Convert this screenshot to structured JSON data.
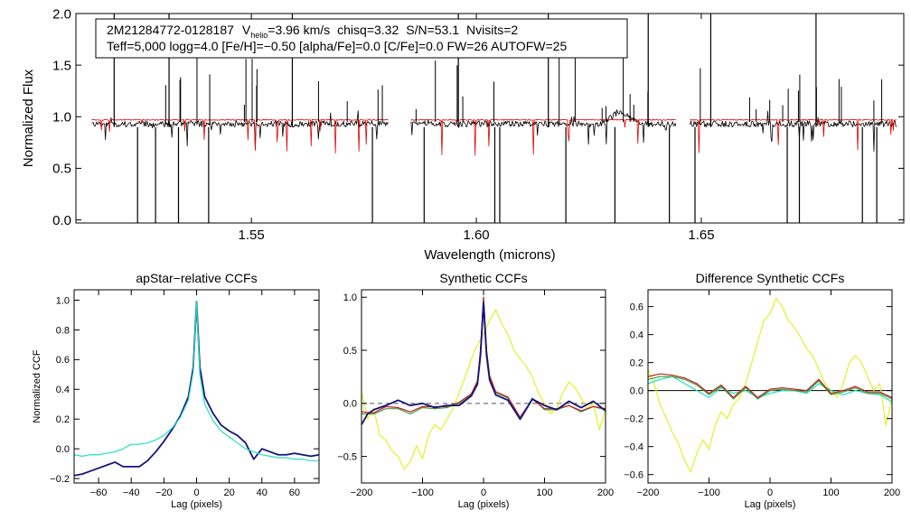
{
  "colors": {
    "observed": "#000000",
    "model": "#e00000",
    "ccf_dark": "#14147a",
    "ccf_teal": "#22e0c0",
    "ccf_yellow": "#e2f22a",
    "ccf_red": "#c02020",
    "ccf_green": "#48a048",
    "zero_line": "#555555"
  },
  "info": {
    "star_id": "2M21284772-0128187",
    "vhelio_prefix": "V",
    "vhelio_sub": "helio",
    "vhelio_value": "=3.96 km/s",
    "chisq": "chisq=3.32",
    "snr": "S/N=53.1",
    "nvisits": "Nvisits=2",
    "line2": "Teff=5,000 logg=4.0 [Fe/H]=−0.50 [alpha/Fe]=0.0 [C/Fe]=0.0 FW=26 AUTOFW=25"
  },
  "chart_data": [
    {
      "type": "line",
      "name": "spectrum",
      "title": "",
      "xlabel": "Wavelength (microns)",
      "ylabel": "Normalized Flux",
      "xlim": [
        1.511,
        1.695
      ],
      "ylim": [
        -0.03,
        2.0
      ],
      "xticks": [
        1.55,
        1.6,
        1.65
      ],
      "xtick_labels": [
        "1.55",
        "1.60",
        "1.65"
      ],
      "yticks": [
        0.0,
        0.5,
        1.0,
        1.5,
        2.0
      ],
      "ytick_labels": [
        "0.0",
        "0.5",
        "1.0",
        "1.5",
        "2.0"
      ],
      "chips": [
        [
          1.5145,
          1.5805
        ],
        [
          1.5855,
          1.6445
        ],
        [
          1.6475,
          1.6935
        ]
      ],
      "series": [
        {
          "name": "observed",
          "color_key": "observed",
          "continuum": 0.93,
          "noise": 0.03
        },
        {
          "name": "model",
          "color_key": "model",
          "continuum": 0.97,
          "noise": 0.005
        }
      ],
      "strong_lines_um": [
        1.5195,
        1.5247,
        1.5287,
        1.5317,
        1.5338,
        1.5405,
        1.5591,
        1.5769,
        1.5884,
        1.596,
        1.6041,
        1.6052,
        1.616,
        1.6199,
        1.6308,
        1.6382,
        1.6429,
        1.6486,
        1.6521,
        1.6691,
        1.6718,
        1.6755,
        1.6858,
        1.689
      ]
    },
    {
      "type": "line",
      "name": "apstar_ccf",
      "title": "apStar−relative CCFs",
      "xlabel": "Lag (pixels)",
      "ylabel": "Normalized CCF",
      "xlim": [
        -75,
        75
      ],
      "ylim": [
        -0.23,
        1.07
      ],
      "xticks": [
        -60,
        -40,
        -20,
        0,
        20,
        40,
        60
      ],
      "xtick_labels": [
        "−60",
        "−40",
        "−20",
        "0",
        "20",
        "40",
        "60"
      ],
      "yticks": [
        -0.2,
        0.0,
        0.2,
        0.4,
        0.6,
        0.8,
        1.0
      ],
      "ytick_labels": [
        "−0.2",
        "0.0",
        "0.2",
        "0.4",
        "0.6",
        "0.8",
        "1.0"
      ],
      "series": [
        {
          "name": "ccf-dark",
          "color_key": "ccf_dark",
          "x": [
            -75,
            -70,
            -65,
            -60,
            -55,
            -50,
            -45,
            -40,
            -35,
            -30,
            -25,
            -20,
            -15,
            -10,
            -5,
            -2,
            0,
            2,
            5,
            10,
            15,
            20,
            25,
            30,
            35,
            40,
            45,
            50,
            55,
            60,
            65,
            70,
            75
          ],
          "y": [
            -0.18,
            -0.17,
            -0.15,
            -0.13,
            -0.11,
            -0.09,
            -0.12,
            -0.12,
            -0.12,
            -0.08,
            -0.02,
            0.05,
            0.13,
            0.22,
            0.35,
            0.55,
            0.99,
            0.55,
            0.35,
            0.24,
            0.16,
            0.12,
            0.09,
            0.04,
            -0.07,
            0.0,
            -0.02,
            -0.04,
            -0.04,
            -0.03,
            -0.04,
            -0.05,
            -0.04
          ]
        },
        {
          "name": "ccf-teal",
          "color_key": "ccf_teal",
          "x": [
            -75,
            -70,
            -65,
            -60,
            -55,
            -50,
            -45,
            -40,
            -35,
            -30,
            -25,
            -20,
            -15,
            -10,
            -5,
            -2,
            0,
            2,
            5,
            10,
            15,
            20,
            25,
            30,
            35,
            40,
            45,
            50,
            55,
            60,
            65,
            70,
            75
          ],
          "y": [
            -0.04,
            -0.05,
            -0.04,
            -0.04,
            -0.03,
            -0.02,
            0.0,
            0.03,
            0.03,
            0.04,
            0.06,
            0.09,
            0.14,
            0.21,
            0.33,
            0.52,
            0.99,
            0.5,
            0.3,
            0.19,
            0.12,
            0.08,
            0.04,
            0.0,
            -0.02,
            -0.04,
            -0.05,
            -0.06,
            -0.06,
            -0.07,
            -0.07,
            -0.08,
            -0.08
          ]
        }
      ]
    },
    {
      "type": "line",
      "name": "synthetic_ccf",
      "title": "Synthetic CCFs",
      "xlabel": "Lag (pixels)",
      "ylabel": "",
      "xlim": [
        -200,
        200
      ],
      "ylim": [
        -0.75,
        1.07
      ],
      "xticks": [
        -200,
        -100,
        0,
        100,
        200
      ],
      "xtick_labels": [
        "−200",
        "−100",
        "0",
        "100",
        "200"
      ],
      "yticks": [
        -0.5,
        0.0,
        0.5,
        1.0
      ],
      "ytick_labels": [
        "−0.5",
        "0.0",
        "0.5",
        "1.0"
      ],
      "zero_line": 0,
      "series": [
        {
          "name": "ccf-yellow",
          "color_key": "ccf_yellow",
          "x": [
            -200,
            -190,
            -180,
            -170,
            -160,
            -150,
            -140,
            -130,
            -120,
            -110,
            -100,
            -90,
            -80,
            -70,
            -60,
            -50,
            -40,
            -30,
            -20,
            -10,
            0,
            10,
            20,
            30,
            40,
            50,
            60,
            70,
            80,
            90,
            100,
            110,
            120,
            130,
            140,
            150,
            160,
            170,
            180,
            190,
            200
          ],
          "y": [
            0.1,
            -0.15,
            -0.05,
            -0.3,
            -0.35,
            -0.45,
            -0.5,
            -0.62,
            -0.55,
            -0.4,
            -0.52,
            -0.3,
            -0.2,
            -0.25,
            -0.15,
            -0.05,
            0.1,
            0.25,
            0.42,
            0.55,
            0.65,
            0.78,
            0.88,
            0.75,
            0.65,
            0.5,
            0.42,
            0.35,
            0.25,
            0.1,
            0.0,
            -0.1,
            -0.05,
            0.1,
            0.2,
            0.15,
            0.05,
            -0.05,
            0.0,
            -0.25,
            -0.05
          ]
        },
        {
          "name": "ccf-green",
          "color_key": "ccf_green",
          "x": [
            -200,
            -180,
            -160,
            -140,
            -120,
            -100,
            -80,
            -60,
            -40,
            -20,
            -10,
            -5,
            0,
            5,
            10,
            20,
            40,
            60,
            80,
            100,
            120,
            140,
            160,
            180,
            200
          ],
          "y": [
            -0.1,
            -0.1,
            -0.05,
            -0.05,
            -0.1,
            -0.04,
            -0.05,
            -0.04,
            0.0,
            0.08,
            0.2,
            0.5,
            1.0,
            0.5,
            0.25,
            0.1,
            0.05,
            -0.15,
            0.05,
            -0.06,
            -0.06,
            -0.02,
            -0.08,
            -0.03,
            -0.06
          ]
        },
        {
          "name": "ccf-red",
          "color_key": "ccf_red",
          "x": [
            -200,
            -180,
            -160,
            -140,
            -120,
            -100,
            -80,
            -60,
            -40,
            -20,
            -10,
            -5,
            0,
            5,
            10,
            20,
            40,
            60,
            80,
            100,
            120,
            140,
            160,
            180,
            200
          ],
          "y": [
            -0.08,
            -0.09,
            -0.03,
            -0.04,
            -0.08,
            -0.03,
            -0.03,
            -0.03,
            0.01,
            0.09,
            0.21,
            0.5,
            1.0,
            0.5,
            0.26,
            0.11,
            0.06,
            -0.13,
            0.04,
            -0.05,
            -0.05,
            -0.02,
            -0.07,
            -0.03,
            -0.05
          ]
        },
        {
          "name": "ccf-dark",
          "color_key": "ccf_dark",
          "x": [
            -200,
            -190,
            -180,
            -160,
            -140,
            -120,
            -100,
            -80,
            -60,
            -40,
            -20,
            -10,
            -5,
            0,
            5,
            10,
            20,
            40,
            60,
            80,
            100,
            120,
            140,
            160,
            180,
            200
          ],
          "y": [
            -0.2,
            -0.1,
            -0.06,
            -0.02,
            0.03,
            -0.02,
            0.0,
            -0.04,
            -0.02,
            -0.02,
            0.07,
            0.18,
            0.45,
            0.95,
            0.45,
            0.22,
            0.08,
            0.03,
            -0.15,
            0.04,
            -0.02,
            -0.06,
            0.02,
            -0.04,
            0.02,
            -0.07
          ]
        }
      ]
    },
    {
      "type": "line",
      "name": "difference_ccf",
      "title": "Difference Synthetic CCFs",
      "xlabel": "Lag (pixels)",
      "ylabel": "",
      "xlim": [
        -200,
        200
      ],
      "ylim": [
        -0.66,
        0.72
      ],
      "xticks": [
        -200,
        -100,
        0,
        100,
        200
      ],
      "xtick_labels": [
        "−200",
        "−100",
        "0",
        "100",
        "200"
      ],
      "yticks": [
        -0.6,
        -0.4,
        -0.2,
        0.0,
        0.2,
        0.4,
        0.6
      ],
      "ytick_labels": [
        "−0.6",
        "−0.4",
        "−0.2",
        "0.0",
        "0.2",
        "0.4",
        "0.6"
      ],
      "zero_line": 0,
      "series": [
        {
          "name": "diff-yellow",
          "color_key": "ccf_yellow",
          "x": [
            -200,
            -190,
            -180,
            -170,
            -160,
            -150,
            -140,
            -130,
            -120,
            -110,
            -100,
            -90,
            -80,
            -70,
            -60,
            -50,
            -40,
            -30,
            -20,
            -10,
            0,
            10,
            20,
            30,
            40,
            50,
            60,
            70,
            80,
            90,
            100,
            110,
            120,
            130,
            140,
            150,
            160,
            170,
            180,
            190,
            200
          ],
          "y": [
            0.15,
            0.05,
            -0.1,
            -0.2,
            -0.3,
            -0.38,
            -0.5,
            -0.58,
            -0.45,
            -0.35,
            -0.42,
            -0.25,
            -0.15,
            -0.2,
            -0.1,
            -0.05,
            0.05,
            0.2,
            0.35,
            0.5,
            0.55,
            0.66,
            0.6,
            0.5,
            0.45,
            0.38,
            0.3,
            0.25,
            0.15,
            0.05,
            0.0,
            -0.05,
            0.05,
            0.2,
            0.25,
            0.2,
            0.1,
            0.0,
            0.05,
            -0.25,
            -0.05
          ]
        },
        {
          "name": "diff-teal",
          "color_key": "ccf_teal",
          "x": [
            -200,
            -180,
            -160,
            -140,
            -120,
            -100,
            -80,
            -60,
            -40,
            -20,
            0,
            20,
            40,
            60,
            80,
            100,
            120,
            140,
            160,
            180,
            200
          ],
          "y": [
            0.05,
            0.08,
            0.1,
            0.05,
            0.0,
            -0.05,
            0.02,
            -0.02,
            0.0,
            -0.05,
            -0.02,
            0.0,
            0.0,
            -0.02,
            0.05,
            0.0,
            -0.03,
            0.0,
            -0.02,
            -0.03,
            -0.08
          ]
        },
        {
          "name": "diff-green",
          "color_key": "ccf_green",
          "x": [
            -200,
            -180,
            -160,
            -140,
            -120,
            -100,
            -80,
            -60,
            -40,
            -20,
            0,
            20,
            40,
            60,
            80,
            100,
            120,
            140,
            160,
            180,
            200
          ],
          "y": [
            0.08,
            0.1,
            0.1,
            0.08,
            0.04,
            -0.03,
            0.03,
            -0.06,
            0.02,
            -0.06,
            0.0,
            0.01,
            0.0,
            -0.01,
            0.07,
            -0.03,
            -0.01,
            0.02,
            -0.02,
            -0.02,
            -0.06
          ]
        },
        {
          "name": "diff-red",
          "color_key": "ccf_red",
          "x": [
            -200,
            -180,
            -160,
            -140,
            -120,
            -100,
            -80,
            -60,
            -40,
            -20,
            0,
            20,
            40,
            60,
            80,
            100,
            120,
            140,
            160,
            180,
            200
          ],
          "y": [
            0.1,
            0.12,
            0.11,
            0.09,
            0.05,
            -0.02,
            0.04,
            -0.05,
            0.03,
            -0.05,
            0.01,
            0.02,
            0.01,
            0.0,
            0.08,
            -0.02,
            0.0,
            0.03,
            -0.01,
            -0.01,
            -0.05
          ]
        }
      ]
    }
  ]
}
